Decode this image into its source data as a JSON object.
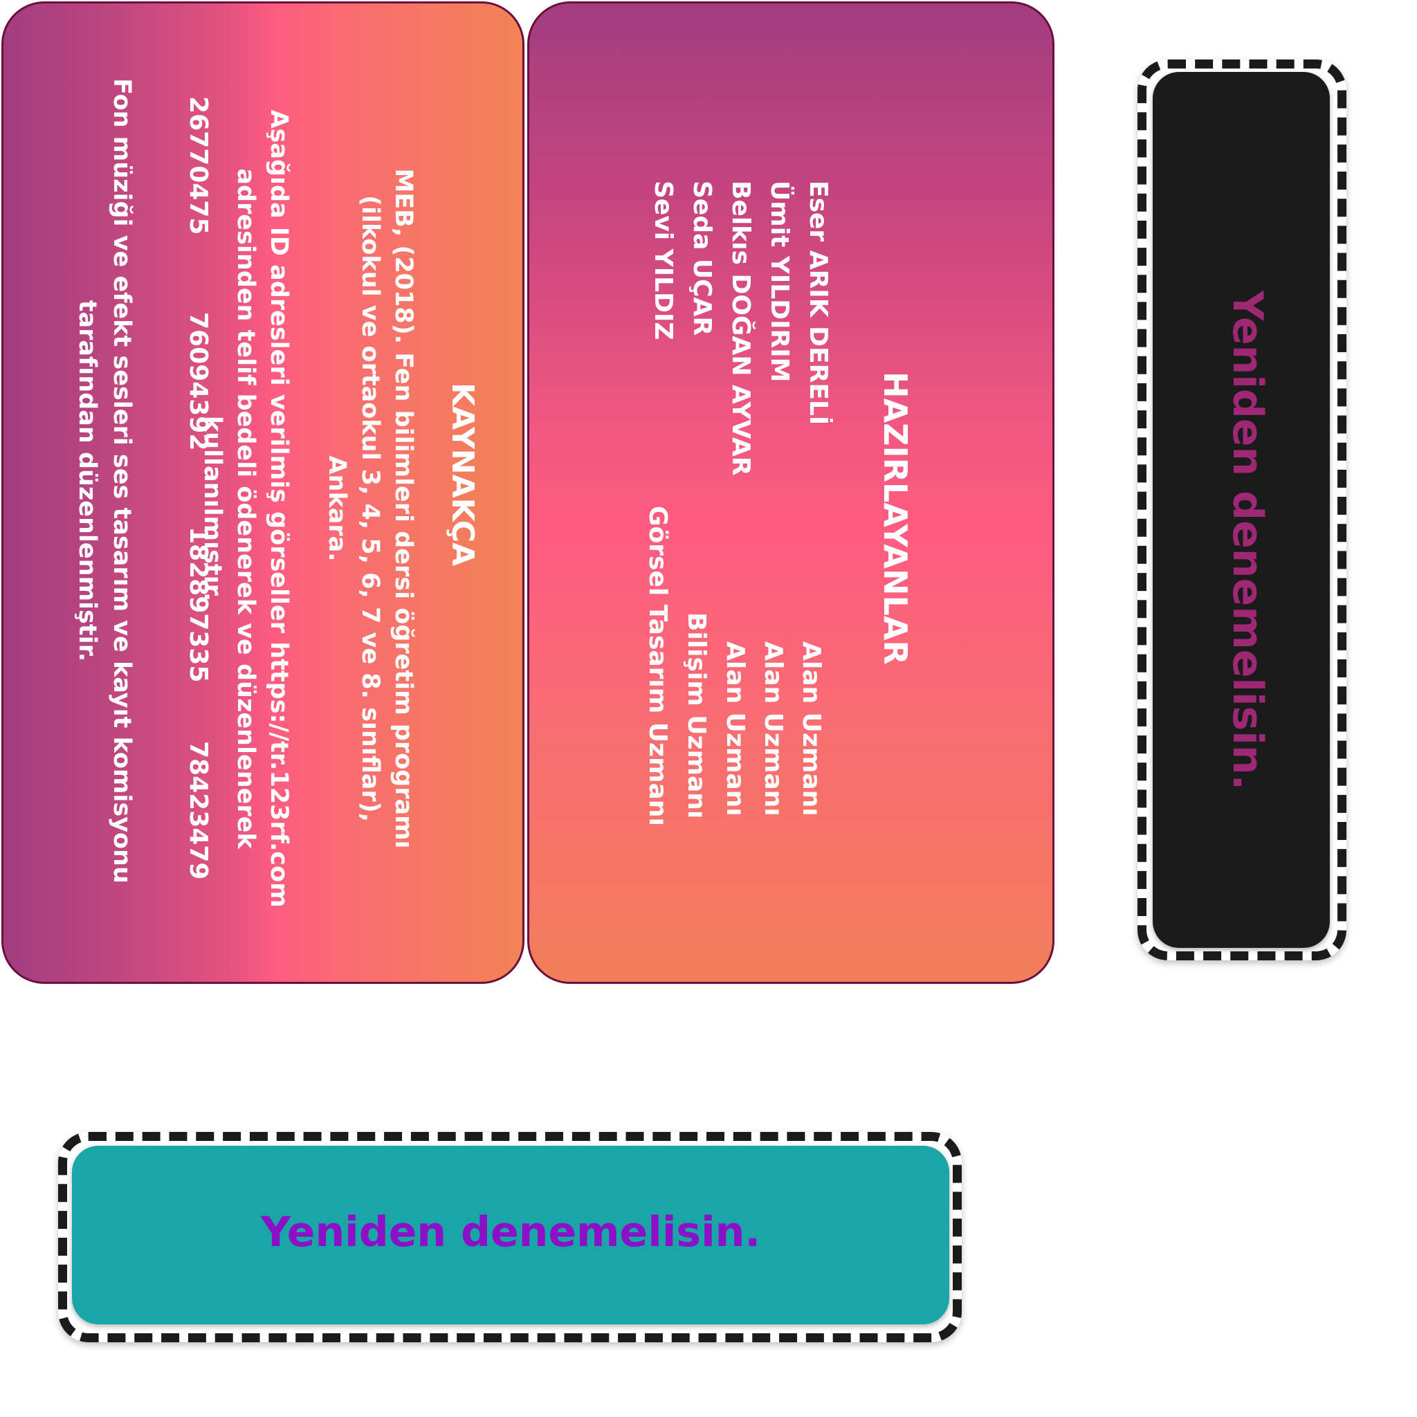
{
  "kaynakca": {
    "title": "KAYNAKÇA",
    "reference": "MEB, (2018). Fen bilimleri dersi öğretim programı (ilkokul ve ortaokul 3, 4, 5, 6, 7 ve 8. sınıflar), Ankara.",
    "ids_intro": "Aşağıda ID adresleri verilmiş görseller https://tr.123rf.com adresinden telif bedeli ödenerek ve düzenlenerek kullanılmıştır.",
    "image_ids": [
      "26770475",
      "76094392",
      "182897335",
      "78423479"
    ],
    "music_note": "Fon müziği ve efekt sesleri ses tasarım ve kayıt komisyonu tarafından düzenlenmiştir."
  },
  "hazirlayanlar": {
    "title": "HAZIRLAYANLAR",
    "people": [
      {
        "name": "Eser ARIK DERELİ",
        "role": "Alan Uzmanı"
      },
      {
        "name": "Ümit YILDIRIM",
        "role": "Alan Uzmanı"
      },
      {
        "name": "Belkıs DOĞAN AYVAR",
        "role": "Alan Uzmanı"
      },
      {
        "name": "Seda UÇAR",
        "role": "Bilişim Uzmanı"
      },
      {
        "name": "Sevi YILDIZ",
        "role": "Görsel Tasarım Uzmanı"
      }
    ]
  },
  "feedback": {
    "right_text": "Yeniden denemelisin.",
    "bottom_text": "Yeniden denemelisin."
  },
  "colors": {
    "card_border": "#6b0f3e",
    "gradient_purple": "#a23d80",
    "gradient_pink": "#fe5c80",
    "gradient_orange": "#f28355",
    "feedback_right_bg": "#1b1b1b",
    "feedback_right_text": "#9e2874",
    "feedback_bottom_bg": "#1aa6a6",
    "feedback_bottom_text": "#8c10c8"
  }
}
